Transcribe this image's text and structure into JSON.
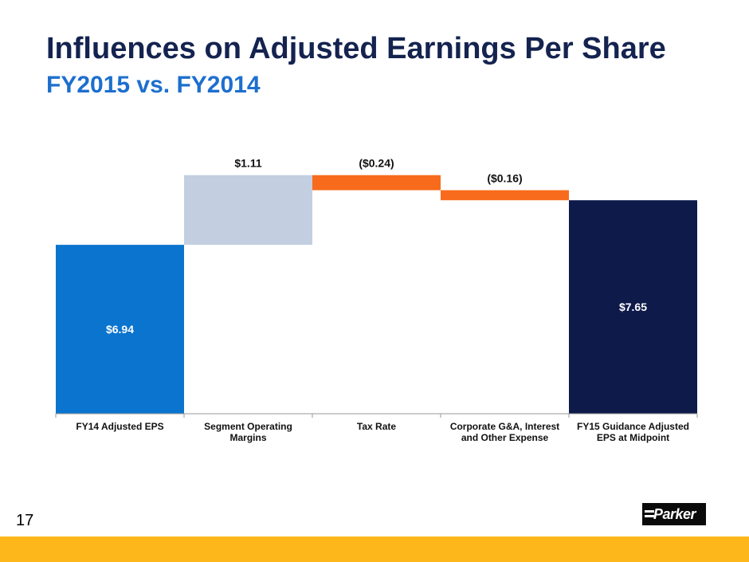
{
  "slide": {
    "title": "Influences on Adjusted Earnings Per Share",
    "subtitle": "FY2015 vs. FY2014",
    "page_number": "17",
    "logo_text": "Parker"
  },
  "chart_data": {
    "type": "bar",
    "subtype": "waterfall",
    "title": "",
    "xlabel": "",
    "ylabel": "",
    "categories": [
      "FY14 Adjusted EPS",
      "Segment Operating Margins",
      "Tax Rate",
      "Corporate G&A, Interest and Other Expense",
      "FY15 Guidance Adjusted EPS at Midpoint"
    ],
    "category_lines": [
      [
        "FY14 Adjusted EPS"
      ],
      [
        "Segment Operating",
        "Margins"
      ],
      [
        "Tax Rate"
      ],
      [
        "Corporate G&A, Interest",
        "and Other Expense"
      ],
      [
        "FY15 Guidance Adjusted",
        "EPS at Midpoint"
      ]
    ],
    "values": [
      6.94,
      1.11,
      -0.24,
      -0.16,
      7.65
    ],
    "data_labels": [
      "$6.94",
      "$1.11",
      "($0.24)",
      "($0.16)",
      "$7.65"
    ],
    "bar_kinds": [
      "total",
      "increase",
      "decrease",
      "decrease",
      "total"
    ],
    "colors": [
      "#0a74cf",
      "#c3cfe0",
      "#f86b1c",
      "#f86b1c",
      "#0d1a4a"
    ],
    "ylim": [
      4.25,
      8.3
    ],
    "grid": false,
    "legend": "none"
  }
}
